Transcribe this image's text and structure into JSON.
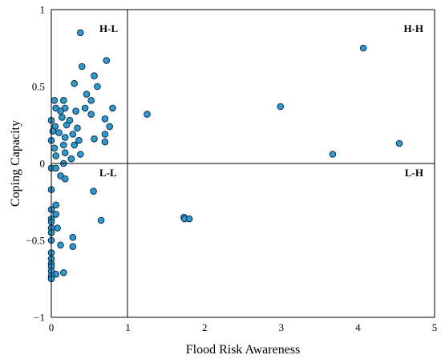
{
  "chart_data": {
    "type": "scatter",
    "xlabel": "Flood Risk Awareness",
    "ylabel": "Coping Capacity",
    "xlim": [
      0,
      5
    ],
    "ylim": [
      -1,
      1
    ],
    "x_ticks": [
      "0",
      "1",
      "2",
      "3",
      "4",
      "5"
    ],
    "y_ticks": [
      "1",
      "0.5",
      "0",
      "−0.5",
      "−1"
    ],
    "y_tick_values": [
      1,
      0.5,
      0,
      -0.5,
      -1
    ],
    "divider_x": 1,
    "divider_y": 0,
    "grid": false,
    "quadrant_labels": {
      "top_left": "H-L",
      "top_right": "H-H",
      "bottom_left": "L-L",
      "bottom_right": "L-H"
    },
    "marker_color": "#2E9BCF",
    "marker_edge_color": "#0b2c4d",
    "points": [
      [
        0.38,
        0.85
      ],
      [
        0.72,
        0.67
      ],
      [
        0.4,
        0.63
      ],
      [
        0.56,
        0.57
      ],
      [
        0.3,
        0.52
      ],
      [
        0.6,
        0.5
      ],
      [
        0.46,
        0.45
      ],
      [
        0.52,
        0.41
      ],
      [
        0.04,
        0.41
      ],
      [
        0.16,
        0.41
      ],
      [
        0.8,
        0.36
      ],
      [
        0.44,
        0.36
      ],
      [
        0.18,
        0.36
      ],
      [
        0.06,
        0.36
      ],
      [
        0.12,
        0.34
      ],
      [
        0.32,
        0.34
      ],
      [
        0.52,
        0.32
      ],
      [
        0.14,
        0.3
      ],
      [
        0.7,
        0.29
      ],
      [
        0.24,
        0.28
      ],
      [
        0.0,
        0.28
      ],
      [
        0.2,
        0.25
      ],
      [
        0.05,
        0.24
      ],
      [
        0.34,
        0.23
      ],
      [
        0.76,
        0.24
      ],
      [
        0.02,
        0.21
      ],
      [
        0.1,
        0.2
      ],
      [
        0.28,
        0.19
      ],
      [
        0.7,
        0.19
      ],
      [
        0.18,
        0.17
      ],
      [
        0.0,
        0.15
      ],
      [
        0.36,
        0.15
      ],
      [
        0.56,
        0.16
      ],
      [
        0.7,
        0.14
      ],
      [
        0.16,
        0.12
      ],
      [
        0.3,
        0.12
      ],
      [
        0.04,
        0.1
      ],
      [
        0.18,
        0.07
      ],
      [
        0.38,
        0.06
      ],
      [
        0.06,
        0.05
      ],
      [
        0.26,
        0.03
      ],
      [
        0.16,
        0.0
      ],
      [
        0.0,
        -0.03
      ],
      [
        0.06,
        -0.03
      ],
      [
        0.12,
        -0.08
      ],
      [
        0.18,
        -0.1
      ],
      [
        0.0,
        -0.17
      ],
      [
        0.0,
        -0.3
      ],
      [
        0.06,
        -0.27
      ],
      [
        0.06,
        -0.33
      ],
      [
        0.0,
        -0.36
      ],
      [
        0.0,
        -0.38
      ],
      [
        0.0,
        -0.42
      ],
      [
        0.08,
        -0.42
      ],
      [
        0.0,
        -0.45
      ],
      [
        0.28,
        -0.48
      ],
      [
        0.0,
        -0.5
      ],
      [
        0.28,
        -0.54
      ],
      [
        0.12,
        -0.53
      ],
      [
        0.0,
        -0.58
      ],
      [
        0.0,
        -0.62
      ],
      [
        0.0,
        -0.65
      ],
      [
        0.0,
        -0.67
      ],
      [
        0.0,
        -0.7
      ],
      [
        0.06,
        -0.72
      ],
      [
        0.16,
        -0.71
      ],
      [
        0.0,
        -0.73
      ],
      [
        0.0,
        -0.75
      ],
      [
        0.55,
        -0.18
      ],
      [
        0.65,
        -0.37
      ],
      [
        1.25,
        0.32
      ],
      [
        2.99,
        0.37
      ],
      [
        4.07,
        0.75
      ],
      [
        4.54,
        0.13
      ],
      [
        3.67,
        0.06
      ],
      [
        1.73,
        -0.35
      ],
      [
        1.74,
        -0.36
      ],
      [
        1.8,
        -0.36
      ]
    ]
  }
}
